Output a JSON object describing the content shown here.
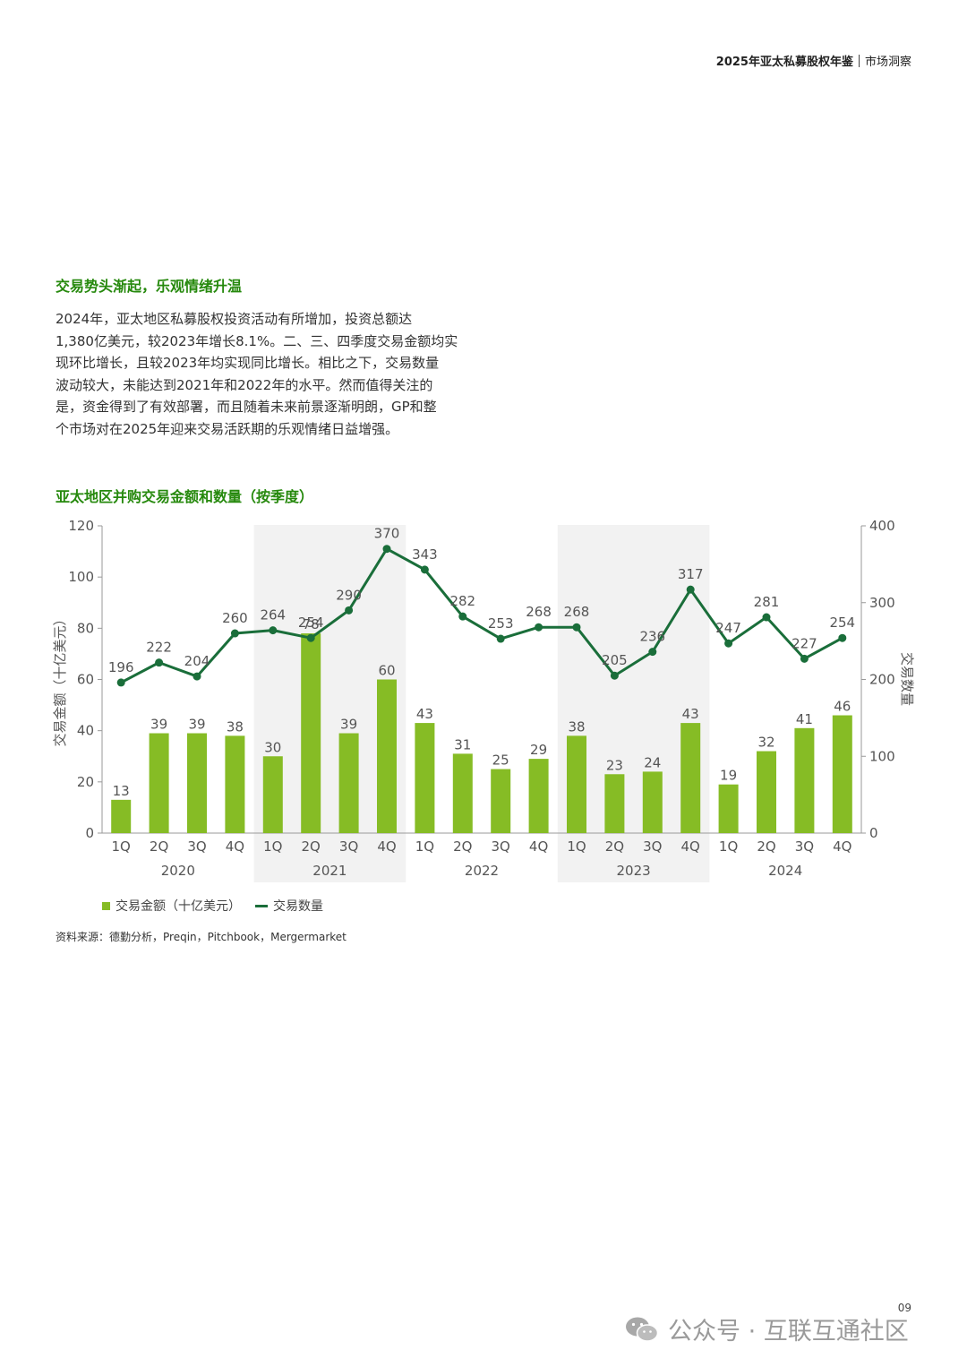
{
  "header": {
    "title": "2025年亚太私募股权年鉴",
    "section": "市场洞察"
  },
  "section_heading": "交易势头渐起，乐观情绪升温",
  "paragraph_lines": [
    "2024年，亚太地区私募股权投资活动有所增加，投资总额达",
    "1,380亿美元，较2023年增长8.1%。二、三、四季度交易金额均实",
    "现环比增长，且较2023年均实现同比增长。相比之下，交易数量",
    "波动较大，未能达到2021年和2022年的水平。然而值得关注的",
    "是，资金得到了有效部署，而且随着未来前景逐渐明朗，GP和整",
    "个市场对在2025年迎来交易活跃期的乐观情绪日益增强。"
  ],
  "legend": {
    "bar_label": "交易金额（十亿美元）",
    "line_label": "交易数量"
  },
  "source": "资料来源：德勤分析，Preqin，Pitchbook，Mergermarket",
  "page_number": "09",
  "watermark": {
    "text": "公众号 · 互联互通社区",
    "icon": "wechat-icon"
  },
  "chart_data": {
    "type": "bar+line",
    "title": "亚太地区并购交易金额和数量（按季度）",
    "ylabel_left": "交易金额（十亿美元）",
    "ylabel_right": "交易数量",
    "ylim_left": [
      0,
      120
    ],
    "yticks_left": [
      0,
      20,
      40,
      60,
      80,
      100,
      120
    ],
    "ylim_right": [
      0,
      400
    ],
    "yticks_right": [
      0,
      100,
      200,
      300,
      400
    ],
    "categories": [
      "1Q",
      "2Q",
      "3Q",
      "4Q",
      "1Q",
      "2Q",
      "3Q",
      "4Q",
      "1Q",
      "2Q",
      "3Q",
      "4Q",
      "1Q",
      "2Q",
      "3Q",
      "4Q",
      "1Q",
      "2Q",
      "3Q",
      "4Q"
    ],
    "years": [
      "2020",
      "2021",
      "2022",
      "2023",
      "2024"
    ],
    "shaded_years": [
      "2021",
      "2023"
    ],
    "series": [
      {
        "name": "交易金额（十亿美元）",
        "type": "bar",
        "axis": "left",
        "color": "#86bc25",
        "values": [
          13,
          39,
          39,
          38,
          30,
          78,
          39,
          60,
          43,
          31,
          25,
          29,
          38,
          23,
          24,
          43,
          19,
          32,
          41,
          46
        ]
      },
      {
        "name": "交易数量",
        "type": "line",
        "axis": "right",
        "color": "#1a6e3a",
        "values": [
          196,
          222,
          204,
          260,
          264,
          254,
          290,
          370,
          343,
          282,
          253,
          268,
          268,
          205,
          236,
          317,
          247,
          281,
          227,
          254
        ]
      }
    ],
    "grid": false,
    "legend_position": "bottom-left"
  }
}
